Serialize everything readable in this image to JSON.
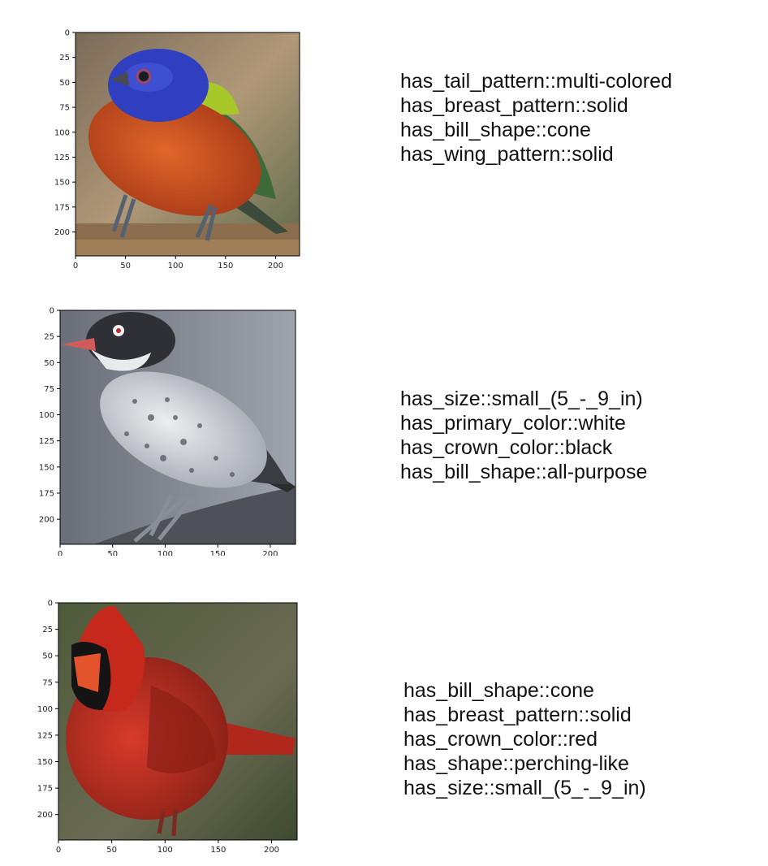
{
  "panels": [
    {
      "subject": "painted bunting",
      "x_ticks": [
        "0",
        "50",
        "100",
        "150",
        "200"
      ],
      "y_ticks": [
        "0",
        "25",
        "50",
        "75",
        "100",
        "125",
        "150",
        "175",
        "200"
      ],
      "attributes": [
        "has_tail_pattern::multi-colored",
        "has_breast_pattern::solid",
        "has_bill_shape::cone",
        "has_wing_pattern::solid"
      ]
    },
    {
      "subject": "black-and-white speckled bird",
      "x_ticks": [
        "0",
        "50",
        "100",
        "150",
        "200"
      ],
      "y_ticks": [
        "0",
        "25",
        "50",
        "75",
        "100",
        "125",
        "150",
        "175",
        "200"
      ],
      "attributes": [
        "has_size::small_(5_-_9_in)",
        "has_primary_color::white",
        "has_crown_color::black",
        "has_bill_shape::all-purpose"
      ]
    },
    {
      "subject": "northern cardinal",
      "x_ticks": [
        "0",
        "50",
        "100",
        "150",
        "200"
      ],
      "y_ticks": [
        "0",
        "25",
        "50",
        "75",
        "100",
        "125",
        "150",
        "175",
        "200"
      ],
      "attributes": [
        "has_bill_shape::cone",
        "has_breast_pattern::solid",
        "has_crown_color::red",
        "has_shape::perching-like",
        "has_size::small_(5_-_9_in)"
      ]
    }
  ]
}
